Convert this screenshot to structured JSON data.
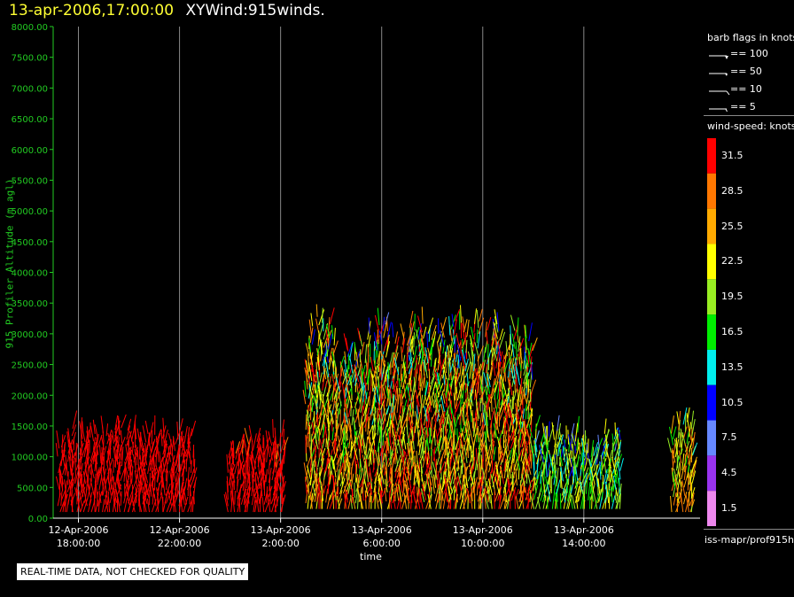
{
  "header": {
    "datetime": "13-apr-2006,17:00:00",
    "product": "XYWind:915winds."
  },
  "chart_data": {
    "type": "scatter",
    "title": "13-apr-2006,17:00:00  XYWind:915winds.",
    "xlabel": "time",
    "ylabel": "915 Profiler Altitude (m agl)",
    "y_ticks": [
      "0.00",
      "500.00",
      "1000.00",
      "1500.00",
      "2000.00",
      "2500.00",
      "3000.00",
      "3500.00",
      "4000.00",
      "4500.00",
      "5000.00",
      "5500.00",
      "6000.00",
      "6500.00",
      "7000.00",
      "7500.00",
      "8000.00"
    ],
    "ylim": [
      0,
      8000
    ],
    "x_ticks": [
      {
        "line1": "12-Apr-2006",
        "line2": "18:00:00",
        "hour": 18
      },
      {
        "line1": "12-Apr-2006",
        "line2": "22:00:00",
        "hour": 22
      },
      {
        "line1": "13-Apr-2006",
        "line2": "2:00:00",
        "hour": 26
      },
      {
        "line1": "13-Apr-2006",
        "line2": "6:00:00",
        "hour": 30
      },
      {
        "line1": "13-Apr-2006",
        "line2": "10:00:00",
        "hour": 34
      },
      {
        "line1": "13-Apr-2006",
        "line2": "14:00:00",
        "hour": 38
      }
    ],
    "xlim_hours": [
      17.0,
      42.6
    ],
    "grid": "vertical lines at x ticks",
    "wind_speed_colorbar": {
      "unit": "wind-speed: knots",
      "levels": [
        31.5,
        28.5,
        25.5,
        22.5,
        19.5,
        16.5,
        13.5,
        10.5,
        7.5,
        4.5,
        1.5
      ],
      "colors": [
        "#ff0000",
        "#ff7700",
        "#ffaa00",
        "#ffff00",
        "#99ee22",
        "#00ee00",
        "#00eeee",
        "#0000ff",
        "#6688ff",
        "#9933ee",
        "#ee88ee"
      ]
    },
    "barb_legend": {
      "title": "barb flags in knots",
      "items": [
        "== 100",
        "== 50",
        "== 10",
        "== 5"
      ]
    },
    "data_clusters": [
      {
        "t_start": 17.2,
        "t_end": 22.6,
        "alt_min": 100,
        "alt_max": 1500,
        "speed_max": 34,
        "speed_min": 30
      },
      {
        "t_start": 23.9,
        "t_end": 26.2,
        "alt_min": 100,
        "alt_max": 1400,
        "speed_max": 34,
        "speed_min": 28
      },
      {
        "t_start": 27.0,
        "t_end": 36.0,
        "alt_min": 150,
        "alt_max": 3300,
        "speed_max": 34,
        "speed_min": 3
      },
      {
        "t_start": 36.0,
        "t_end": 39.5,
        "alt_min": 150,
        "alt_max": 1500,
        "speed_max": 24,
        "speed_min": 3
      },
      {
        "t_start": 41.5,
        "t_end": 42.4,
        "alt_min": 100,
        "alt_max": 1600,
        "speed_max": 30,
        "speed_min": 8
      }
    ]
  },
  "notice": "REAL-TIME DATA, NOT CHECKED FOR QUALITY",
  "source": "iss-mapr/prof915h"
}
